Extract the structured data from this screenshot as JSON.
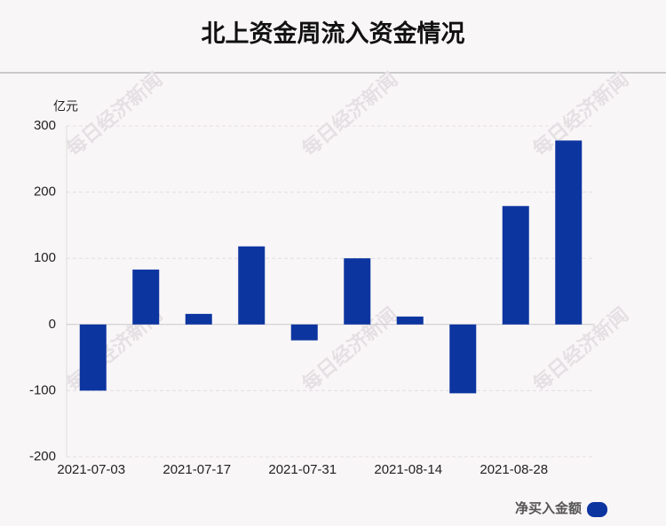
{
  "chart_data": {
    "type": "bar",
    "title": "北上资金周流入资金情况",
    "y_label": "亿元",
    "watermark": "每日经济新闻",
    "categories": [
      "2021-07-03",
      null,
      "2021-07-17",
      null,
      "2021-07-31",
      null,
      "2021-08-14",
      null,
      "2021-08-28",
      null
    ],
    "series": [
      {
        "name": "净买入金额",
        "color": "#0d35a0",
        "values": [
          -100,
          83,
          16,
          118,
          -24,
          100,
          12,
          -104,
          179,
          278
        ]
      }
    ],
    "ylim": [
      -200,
      300
    ],
    "yticks": [
      -200,
      -100,
      0,
      100,
      200,
      300
    ],
    "grid": true,
    "legend": "bottom-right"
  }
}
